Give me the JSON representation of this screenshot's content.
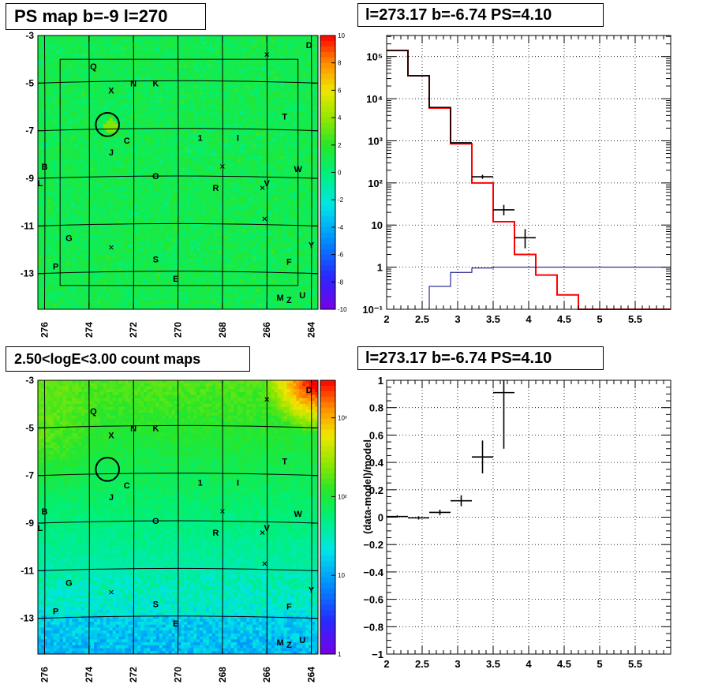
{
  "panels": {
    "ps_map": {
      "title": "PS map b=-9 l=270"
    },
    "count_map": {
      "title": "2.50<logE<3.00 count maps"
    },
    "histogram": {
      "title": "l=273.17 b=-6.74 PS=4.10"
    },
    "residual": {
      "title": "l=273.17 b=-6.74 PS=4.10"
    }
  },
  "chart_data": [
    {
      "id": "ps_map",
      "type": "heatmap",
      "title": "PS map b=-9 l=270",
      "x_ticks": [
        "276",
        "274",
        "272",
        "270",
        "268",
        "266",
        "264"
      ],
      "x_tick_values": [
        276,
        274,
        272,
        270,
        268,
        266,
        264
      ],
      "y_ticks": [
        "-3",
        "-5",
        "-7",
        "-9",
        "-11",
        "-13"
      ],
      "y_tick_values": [
        -3,
        -5,
        -7,
        -9,
        -11,
        -13
      ],
      "xlim": [
        276.3,
        263.7
      ],
      "ylim": [
        -14.5,
        -3
      ],
      "colorbar": {
        "scale": "linear",
        "range": [
          -10,
          10
        ],
        "ticks": [
          "10",
          "8",
          "6",
          "4",
          "2",
          "0",
          "-2",
          "-4",
          "-6",
          "-8",
          "-10"
        ],
        "tick_values": [
          10,
          8,
          6,
          4,
          2,
          0,
          -2,
          -4,
          -6,
          -8,
          -10
        ]
      },
      "background_level": 0.5,
      "source_labels": [
        {
          "text": "Q",
          "l": 273.8,
          "b": -4.3
        },
        {
          "text": "X",
          "l": 273.0,
          "b": -5.3
        },
        {
          "text": "N",
          "l": 272.0,
          "b": -5.0
        },
        {
          "text": "K",
          "l": 271.0,
          "b": -5.0
        },
        {
          "text": "D",
          "l": 264.1,
          "b": -3.4
        },
        {
          "text": "T",
          "l": 265.2,
          "b": -6.4
        },
        {
          "text": "C",
          "l": 272.3,
          "b": -7.4
        },
        {
          "text": "1",
          "l": 269.0,
          "b": -7.3
        },
        {
          "text": "I",
          "l": 267.3,
          "b": -7.3
        },
        {
          "text": "J",
          "l": 273.0,
          "b": -7.9
        },
        {
          "text": "B",
          "l": 276.0,
          "b": -8.5
        },
        {
          "text": "L",
          "l": 276.2,
          "b": -9.2
        },
        {
          "text": "W",
          "l": 264.6,
          "b": -8.6
        },
        {
          "text": "O",
          "l": 271.0,
          "b": -8.9
        },
        {
          "text": "R",
          "l": 268.3,
          "b": -9.4
        },
        {
          "text": "V",
          "l": 266.0,
          "b": -9.2
        },
        {
          "text": "G",
          "l": 274.9,
          "b": -11.5
        },
        {
          "text": "Y",
          "l": 264.0,
          "b": -11.8
        },
        {
          "text": "P",
          "l": 275.5,
          "b": -12.7
        },
        {
          "text": "S",
          "l": 271.0,
          "b": -12.4
        },
        {
          "text": "F",
          "l": 265.0,
          "b": -12.5
        },
        {
          "text": "E",
          "l": 270.1,
          "b": -13.2
        },
        {
          "text": "M",
          "l": 265.4,
          "b": -14.0
        },
        {
          "text": "Z",
          "l": 265.0,
          "b": -14.1
        },
        {
          "text": "U",
          "l": 264.4,
          "b": -13.9
        }
      ],
      "x_markers": [
        {
          "l": 266.0,
          "b": -3.8
        },
        {
          "l": 268.0,
          "b": -8.5
        },
        {
          "l": 266.1,
          "b": -10.7
        },
        {
          "l": 273.0,
          "b": -11.9
        },
        {
          "l": 266.2,
          "b": -9.4
        }
      ],
      "circle": {
        "l": 273.17,
        "b": -6.74,
        "radius": 0.5
      },
      "roi_box": {
        "l": [
          275.3,
          264.6
        ],
        "b": [
          -4.0,
          -13.5
        ]
      }
    },
    {
      "id": "count_map",
      "type": "heatmap",
      "title": "2.50<logE<3.00 count maps",
      "x_ticks": [
        "276",
        "274",
        "272",
        "270",
        "268",
        "266",
        "264"
      ],
      "x_tick_values": [
        276,
        274,
        272,
        270,
        268,
        266,
        264
      ],
      "y_ticks": [
        "-3",
        "-5",
        "-7",
        "-9",
        "-11",
        "-13"
      ],
      "y_tick_values": [
        -3,
        -5,
        -7,
        -9,
        -11,
        -13
      ],
      "xlim": [
        276.3,
        263.7
      ],
      "ylim": [
        -14.5,
        -3
      ],
      "colorbar": {
        "scale": "log",
        "range": [
          1,
          3000
        ],
        "ticks": [
          "10³",
          "10²",
          "10",
          "1"
        ],
        "tick_values": [
          1000,
          100,
          10,
          1
        ]
      },
      "source_labels": [
        {
          "text": "Q",
          "l": 273.8,
          "b": -4.3
        },
        {
          "text": "X",
          "l": 273.0,
          "b": -5.3
        },
        {
          "text": "N",
          "l": 272.0,
          "b": -5.0
        },
        {
          "text": "K",
          "l": 271.0,
          "b": -5.0
        },
        {
          "text": "D",
          "l": 264.1,
          "b": -3.4
        },
        {
          "text": "T",
          "l": 265.2,
          "b": -6.4
        },
        {
          "text": "C",
          "l": 272.3,
          "b": -7.4
        },
        {
          "text": "1",
          "l": 269.0,
          "b": -7.3
        },
        {
          "text": "I",
          "l": 267.3,
          "b": -7.3
        },
        {
          "text": "J",
          "l": 273.0,
          "b": -7.9
        },
        {
          "text": "B",
          "l": 276.0,
          "b": -8.5
        },
        {
          "text": "L",
          "l": 276.2,
          "b": -9.2
        },
        {
          "text": "W",
          "l": 264.6,
          "b": -8.6
        },
        {
          "text": "O",
          "l": 271.0,
          "b": -8.9
        },
        {
          "text": "R",
          "l": 268.3,
          "b": -9.4
        },
        {
          "text": "V",
          "l": 266.0,
          "b": -9.2
        },
        {
          "text": "G",
          "l": 274.9,
          "b": -11.5
        },
        {
          "text": "Y",
          "l": 264.0,
          "b": -11.8
        },
        {
          "text": "P",
          "l": 275.5,
          "b": -12.7
        },
        {
          "text": "S",
          "l": 271.0,
          "b": -12.4
        },
        {
          "text": "F",
          "l": 265.0,
          "b": -12.5
        },
        {
          "text": "E",
          "l": 270.1,
          "b": -13.2
        },
        {
          "text": "M",
          "l": 265.4,
          "b": -14.0
        },
        {
          "text": "Z",
          "l": 265.0,
          "b": -14.1
        },
        {
          "text": "U",
          "l": 264.4,
          "b": -13.9
        }
      ],
      "x_markers": [
        {
          "l": 266.0,
          "b": -3.8
        },
        {
          "l": 268.0,
          "b": -8.5
        },
        {
          "l": 266.1,
          "b": -10.7
        },
        {
          "l": 273.0,
          "b": -11.9
        },
        {
          "l": 266.2,
          "b": -9.4
        }
      ],
      "circle": {
        "l": 273.17,
        "b": -6.74,
        "radius": 0.5
      }
    },
    {
      "id": "histogram",
      "type": "line",
      "title": "l=273.17 b=-6.74 PS=4.10",
      "xlim": [
        2,
        6
      ],
      "ylim_log10": [
        -1,
        5.5
      ],
      "yscale": "log",
      "x_ticks": [
        "2",
        "2.5",
        "3",
        "3.5",
        "4",
        "4.5",
        "5",
        "5.5"
      ],
      "x_tick_values": [
        2,
        2.5,
        3,
        3.5,
        4,
        4.5,
        5,
        5.5
      ],
      "y_ticks_exp": [
        -1,
        0,
        1,
        2,
        3,
        4,
        5
      ],
      "y_tick_labels": [
        "10⁻¹",
        "1",
        "10",
        "10²",
        "10³",
        "10⁴",
        "10⁵"
      ],
      "grid": true,
      "bin_edges": [
        2.0,
        2.3,
        2.6,
        2.9,
        3.2,
        3.5,
        3.8,
        4.1,
        4.4,
        4.7,
        5.0,
        5.3,
        5.6,
        6.0
      ],
      "series": [
        {
          "color": "#ff0000",
          "style": "step",
          "values": [
            140000,
            35000,
            6000,
            850,
            100,
            12,
            2,
            0.65,
            0.22,
            0.1,
            0.1,
            0.1,
            0.1
          ]
        },
        {
          "color": "#000000",
          "style": "step",
          "values": [
            140000,
            35000,
            6200,
            900
          ]
        },
        {
          "color": "#000080",
          "style": "step",
          "values": [
            0.01,
            0.01,
            0.35,
            0.75,
            0.95,
            1.0,
            1.0,
            1.0,
            1.0,
            1.0,
            1.0,
            1.0,
            1.0
          ]
        },
        {
          "color": "#000000",
          "style": "errorbar",
          "points": [
            {
              "x": 3.35,
              "y": 140,
              "xerr": 0.15,
              "ylo": 125,
              "yhi": 156
            },
            {
              "x": 3.65,
              "y": 23,
              "xerr": 0.15,
              "ylo": 17,
              "yhi": 30
            },
            {
              "x": 3.95,
              "y": 5,
              "xerr": 0.15,
              "ylo": 2.8,
              "yhi": 8
            }
          ]
        }
      ]
    },
    {
      "id": "residual",
      "type": "scatter",
      "title": "l=273.17 b=-6.74 PS=4.10",
      "ylabel": "(data-model)/model",
      "xlim": [
        2,
        6
      ],
      "ylim": [
        -1,
        1
      ],
      "x_ticks": [
        "2",
        "2.5",
        "3",
        "3.5",
        "4",
        "4.5",
        "5",
        "5.5"
      ],
      "x_tick_values": [
        2,
        2.5,
        3,
        3.5,
        4,
        4.5,
        5,
        5.5
      ],
      "y_ticks": [
        "1",
        "0.8",
        "0.6",
        "0.4",
        "0.2",
        "0",
        "−0.2",
        "−0.4",
        "−0.6",
        "−0.8",
        "−1"
      ],
      "y_tick_values": [
        1,
        0.8,
        0.6,
        0.4,
        0.2,
        0,
        -0.2,
        -0.4,
        -0.6,
        -0.8,
        -1
      ],
      "grid": true,
      "points": [
        {
          "x": 2.15,
          "y": 0.005,
          "xerr": 0.15,
          "yerr": 0.008
        },
        {
          "x": 2.45,
          "y": -0.005,
          "xerr": 0.15,
          "yerr": 0.012
        },
        {
          "x": 2.75,
          "y": 0.035,
          "xerr": 0.15,
          "yerr": 0.02
        },
        {
          "x": 3.05,
          "y": 0.12,
          "xerr": 0.15,
          "yerr": 0.04
        },
        {
          "x": 3.35,
          "y": 0.44,
          "xerr": 0.15,
          "yerr": 0.12
        },
        {
          "x": 3.65,
          "y": 0.91,
          "xerr": 0.15,
          "yerr": 0.41
        }
      ]
    }
  ]
}
